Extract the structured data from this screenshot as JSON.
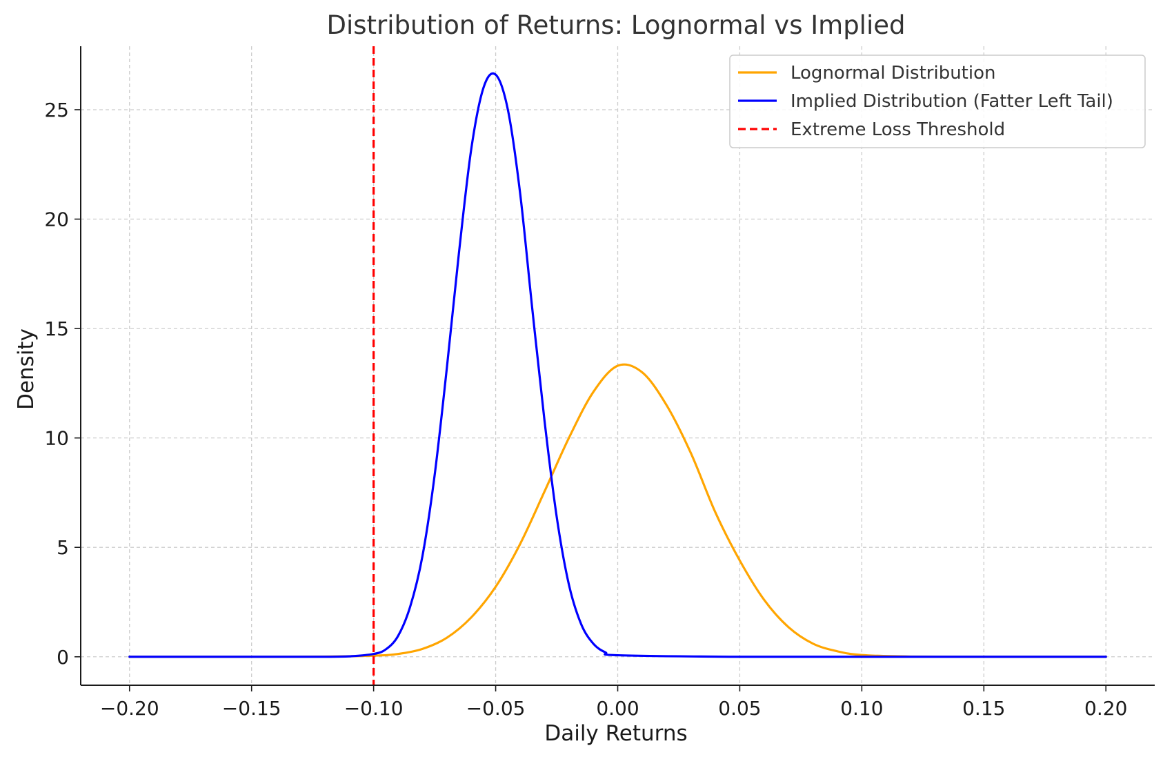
{
  "chart_data": {
    "type": "line",
    "title": "Distribution of Returns: Lognormal vs Implied",
    "xlabel": "Daily Returns",
    "ylabel": "Density",
    "xlim": [
      -0.22,
      0.22
    ],
    "ylim": [
      -1.3,
      27.9
    ],
    "grid": true,
    "legend_position": "top-right",
    "x_ticks": [
      -0.2,
      -0.15,
      -0.1,
      -0.05,
      0.0,
      0.05,
      0.1,
      0.15,
      0.2
    ],
    "x_tick_labels": [
      "−0.20",
      "−0.15",
      "−0.10",
      "−0.05",
      "0.00",
      "0.05",
      "0.10",
      "0.15",
      "0.20"
    ],
    "y_ticks": [
      0,
      5,
      10,
      15,
      20,
      25
    ],
    "y_tick_labels": [
      "0",
      "5",
      "10",
      "15",
      "20",
      "25"
    ],
    "series": [
      {
        "name": "Lognormal Distribution",
        "color": "#FFA500",
        "x": [
          -0.2,
          -0.15,
          -0.12,
          -0.1,
          -0.09,
          -0.08,
          -0.07,
          -0.06,
          -0.05,
          -0.04,
          -0.03,
          -0.02,
          -0.01,
          0.0,
          0.01,
          0.02,
          0.03,
          0.04,
          0.05,
          0.06,
          0.07,
          0.08,
          0.09,
          0.1,
          0.12,
          0.15,
          0.2
        ],
        "values": [
          0.0,
          0.0,
          0.01,
          0.05,
          0.13,
          0.36,
          0.87,
          1.8,
          3.2,
          5.15,
          7.55,
          10.0,
          12.1,
          13.3,
          13.0,
          11.5,
          9.3,
          6.6,
          4.4,
          2.6,
          1.35,
          0.6,
          0.25,
          0.08,
          0.01,
          0.0,
          0.0
        ]
      },
      {
        "name": "Implied Distribution (Fatter Left Tail)",
        "color": "#0000FF",
        "x": [
          -0.2,
          -0.15,
          -0.12,
          -0.11,
          -0.1,
          -0.095,
          -0.09,
          -0.085,
          -0.08,
          -0.075,
          -0.07,
          -0.065,
          -0.06,
          -0.055,
          -0.05,
          -0.045,
          -0.04,
          -0.035,
          -0.03,
          -0.025,
          -0.02,
          -0.015,
          -0.01,
          -0.005,
          0.0,
          0.05,
          0.1,
          0.15,
          0.2
        ],
        "values": [
          0.0,
          0.0,
          0.0,
          0.02,
          0.13,
          0.34,
          0.95,
          2.3,
          4.6,
          8.3,
          13.2,
          18.5,
          23.2,
          26.0,
          26.6,
          25.0,
          21.2,
          15.9,
          10.8,
          6.4,
          3.3,
          1.5,
          0.6,
          0.2,
          0.07,
          0.0,
          0.0,
          0.0,
          0.0
        ]
      },
      {
        "name": "Extreme Loss Threshold",
        "color": "#FF0000",
        "style": "dashed",
        "vertical_line_x": -0.1
      }
    ]
  }
}
